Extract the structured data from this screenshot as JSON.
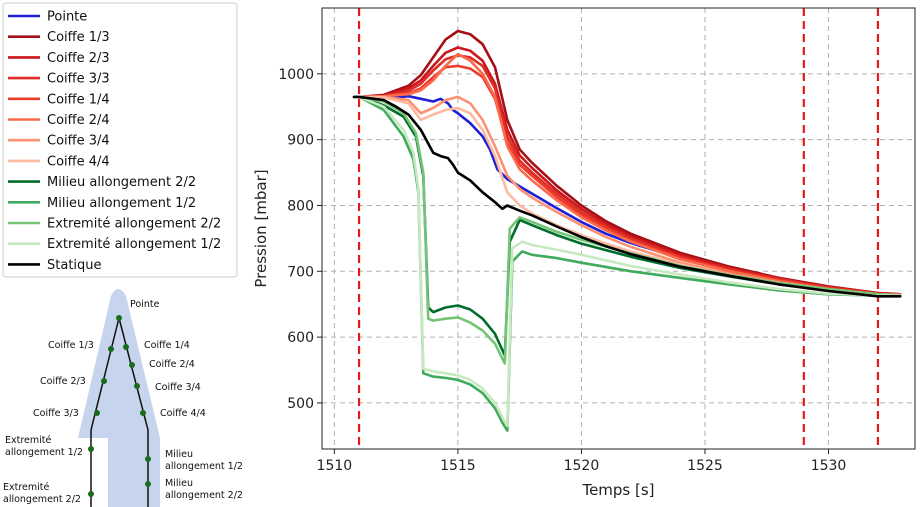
{
  "chart_data": {
    "type": "line",
    "title": "",
    "xlabel": "Temps [s]",
    "ylabel": "Pression [mbar]",
    "xlim": [
      1509.5,
      1533.5
    ],
    "ylim": [
      430,
      1100
    ],
    "xticks": [
      1510,
      1515,
      1520,
      1525,
      1530
    ],
    "yticks": [
      500,
      600,
      700,
      800,
      900,
      1000
    ],
    "grid": true,
    "legend_position": "outside-left",
    "vlines": [
      1511,
      1529,
      1532
    ],
    "vline_color": "#e31a1c",
    "series": [
      {
        "name": "Pointe",
        "color": "#1f1fd6",
        "x": [
          1510.8,
          1511,
          1512,
          1512.5,
          1513,
          1513.5,
          1514,
          1514.3,
          1514.6,
          1514.8,
          1515,
          1515.5,
          1516,
          1516.3,
          1516.6,
          1517,
          1518,
          1519,
          1520,
          1521,
          1522,
          1524,
          1526,
          1528,
          1530,
          1532,
          1532.9
        ],
        "y": [
          965,
          965,
          966,
          964,
          966,
          962,
          958,
          962,
          955,
          945,
          940,
          925,
          905,
          885,
          855,
          840,
          818,
          796,
          775,
          757,
          743,
          720,
          703,
          688,
          675,
          665,
          663
        ]
      },
      {
        "name": "Coiffe 1/3",
        "color": "#a50f15",
        "x": [
          1510.8,
          1511,
          1512,
          1513,
          1513.5,
          1514,
          1514.5,
          1515,
          1515.5,
          1516,
          1516.5,
          1517,
          1517.5,
          1518,
          1519,
          1520,
          1521,
          1522,
          1524,
          1526,
          1528,
          1530,
          1532,
          1532.9
        ],
        "y": [
          965,
          965,
          968,
          982,
          998,
          1025,
          1052,
          1065,
          1060,
          1045,
          1010,
          930,
          885,
          865,
          830,
          800,
          776,
          757,
          728,
          707,
          690,
          677,
          667,
          665
        ]
      },
      {
        "name": "Coiffe 2/3",
        "color": "#cb181d",
        "x": [
          1510.8,
          1511,
          1512,
          1513,
          1513.5,
          1514,
          1514.5,
          1515,
          1515.5,
          1516,
          1516.5,
          1517,
          1517.5,
          1518,
          1519,
          1520,
          1521,
          1522,
          1524,
          1526,
          1528,
          1530,
          1532,
          1532.9
        ],
        "y": [
          965,
          965,
          967,
          978,
          990,
          1012,
          1032,
          1040,
          1035,
          1020,
          985,
          915,
          876,
          857,
          823,
          795,
          772,
          753,
          725,
          705,
          689,
          676,
          667,
          665
        ]
      },
      {
        "name": "Coiffe 3/3",
        "color": "#de2d26",
        "x": [
          1510.8,
          1511,
          1512,
          1513,
          1513.5,
          1514,
          1514.5,
          1515,
          1515.5,
          1516,
          1516.5,
          1517,
          1517.5,
          1518,
          1519,
          1520,
          1521,
          1522,
          1524,
          1526,
          1528,
          1530,
          1532,
          1532.9
        ],
        "y": [
          965,
          965,
          966,
          974,
          985,
          1005,
          1022,
          1028,
          1025,
          1012,
          978,
          905,
          868,
          850,
          818,
          790,
          768,
          750,
          722,
          703,
          688,
          675,
          666,
          664
        ]
      },
      {
        "name": "Coiffe 1/4",
        "color": "#ef3b2c",
        "x": [
          1510.8,
          1511,
          1512,
          1513,
          1513.5,
          1514,
          1514.5,
          1515,
          1515.5,
          1516,
          1516.5,
          1517,
          1517.5,
          1518,
          1519,
          1520,
          1521,
          1522,
          1524,
          1526,
          1528,
          1530,
          1532,
          1532.9
        ],
        "y": [
          965,
          965,
          966,
          970,
          978,
          995,
          1010,
          1012,
          1008,
          995,
          962,
          895,
          862,
          845,
          813,
          786,
          765,
          747,
          720,
          701,
          686,
          674,
          666,
          664
        ]
      },
      {
        "name": "Coiffe 2/4",
        "color": "#fb6a4a",
        "x": [
          1510.8,
          1511,
          1512,
          1513,
          1513.5,
          1514,
          1514.5,
          1515,
          1515.5,
          1516,
          1516.5,
          1517,
          1517.5,
          1518,
          1519,
          1520,
          1521,
          1522,
          1524,
          1526,
          1528,
          1530,
          1532,
          1532.9
        ],
        "y": [
          965,
          965,
          966,
          969,
          975,
          990,
          1012,
          1030,
          1020,
          1000,
          965,
          890,
          855,
          838,
          808,
          782,
          762,
          745,
          718,
          700,
          685,
          673,
          665,
          664
        ]
      },
      {
        "name": "Coiffe 3/4",
        "color": "#fc9272",
        "x": [
          1510.8,
          1511,
          1512,
          1513,
          1513.5,
          1514,
          1514.5,
          1515,
          1515.5,
          1516,
          1516.5,
          1517,
          1517.5,
          1518,
          1519,
          1520,
          1521,
          1522,
          1524,
          1526,
          1528,
          1530,
          1532,
          1532.9
        ],
        "y": [
          965,
          965,
          965,
          960,
          940,
          948,
          960,
          965,
          955,
          930,
          890,
          845,
          825,
          812,
          790,
          770,
          752,
          737,
          713,
          696,
          683,
          672,
          665,
          664
        ]
      },
      {
        "name": "Coiffe 4/4",
        "color": "#fcbba1",
        "x": [
          1510.8,
          1511,
          1512,
          1513,
          1513.5,
          1514,
          1514.5,
          1515,
          1515.5,
          1516,
          1516.5,
          1517,
          1517.5,
          1518,
          1519,
          1520,
          1521,
          1522,
          1524,
          1526,
          1528,
          1530,
          1532,
          1532.9
        ],
        "y": [
          965,
          965,
          964,
          955,
          930,
          938,
          945,
          948,
          940,
          915,
          875,
          820,
          800,
          788,
          770,
          755,
          742,
          730,
          710,
          694,
          682,
          671,
          665,
          664
        ]
      },
      {
        "name": "Milieu allongement 2/2",
        "color": "#006d2c",
        "x": [
          1510.8,
          1511,
          1512,
          1512.8,
          1513.3,
          1513.6,
          1513.8,
          1514,
          1514.5,
          1515,
          1515.5,
          1516,
          1516.5,
          1516.9,
          1517.1,
          1517.5,
          1518,
          1519,
          1520,
          1522,
          1524,
          1526,
          1528,
          1530,
          1532,
          1532.9
        ],
        "y": [
          965,
          965,
          952,
          935,
          905,
          845,
          645,
          638,
          645,
          648,
          642,
          628,
          605,
          572,
          745,
          778,
          770,
          755,
          742,
          722,
          705,
          692,
          680,
          672,
          665,
          663
        ]
      },
      {
        "name": "Milieu allongement 1/2",
        "color": "#41ab5d",
        "x": [
          1510.8,
          1511,
          1512,
          1512.8,
          1513.2,
          1513.4,
          1513.6,
          1514,
          1514.5,
          1515,
          1515.5,
          1516,
          1516.5,
          1516.8,
          1517,
          1517.2,
          1517.6,
          1518,
          1519,
          1520,
          1522,
          1524,
          1526,
          1528,
          1530,
          1532,
          1532.9
        ],
        "y": [
          965,
          965,
          945,
          905,
          870,
          820,
          545,
          540,
          538,
          535,
          528,
          515,
          492,
          470,
          458,
          715,
          730,
          725,
          720,
          713,
          700,
          690,
          680,
          671,
          665,
          663,
          663
        ]
      },
      {
        "name": "Extremité allongement 2/2",
        "color": "#74c476",
        "x": [
          1510.8,
          1511,
          1512,
          1512.8,
          1513.3,
          1513.6,
          1513.8,
          1514,
          1514.5,
          1515,
          1515.5,
          1516,
          1516.5,
          1516.9,
          1517.1,
          1517.5,
          1518,
          1519,
          1520,
          1522,
          1524,
          1526,
          1528,
          1530,
          1532,
          1532.9
        ],
        "y": [
          965,
          965,
          958,
          940,
          910,
          850,
          628,
          625,
          628,
          630,
          622,
          610,
          590,
          560,
          765,
          782,
          775,
          760,
          748,
          727,
          708,
          694,
          682,
          673,
          665,
          663
        ]
      },
      {
        "name": "Extremité allongement 1/2",
        "color": "#c7e9c0",
        "x": [
          1510.8,
          1511,
          1512,
          1512.8,
          1513.2,
          1513.4,
          1513.6,
          1514,
          1514.5,
          1515,
          1515.5,
          1516,
          1516.5,
          1516.8,
          1517,
          1517.2,
          1517.6,
          1518,
          1519,
          1520,
          1522,
          1524,
          1526,
          1528,
          1530,
          1532,
          1532.9
        ],
        "y": [
          965,
          965,
          950,
          915,
          880,
          825,
          552,
          548,
          545,
          542,
          535,
          522,
          500,
          478,
          465,
          735,
          745,
          740,
          733,
          725,
          708,
          695,
          683,
          673,
          666,
          663,
          663
        ]
      },
      {
        "name": "Statique",
        "color": "#000000",
        "x": [
          1510.8,
          1511,
          1512,
          1512.5,
          1513,
          1513.5,
          1514,
          1514.3,
          1514.6,
          1514.8,
          1515,
          1515.5,
          1516,
          1516.5,
          1516.8,
          1517,
          1517.5,
          1518,
          1519,
          1520,
          1521,
          1522,
          1524,
          1526,
          1528,
          1530,
          1532,
          1532.9
        ],
        "y": [
          965,
          965,
          960,
          950,
          938,
          915,
          880,
          875,
          872,
          862,
          850,
          838,
          820,
          805,
          795,
          800,
          792,
          785,
          768,
          752,
          738,
          726,
          707,
          693,
          680,
          670,
          662,
          662
        ]
      }
    ]
  },
  "probe_diagram": {
    "labels": {
      "tip": "Pointe",
      "c13": "Coiffe 1/3",
      "c23": "Coiffe 2/3",
      "c33": "Coiffe 3/3",
      "c14": "Coiffe 1/4",
      "c24": "Coiffe 2/4",
      "c34": "Coiffe 3/4",
      "c44": "Coiffe 4/4",
      "ext12_l1": "Extremité",
      "ext12_l2": "allongement 1/2",
      "ext22_l1": "Extremité",
      "ext22_l2": "allongement 2/2",
      "mil12_l1": "Milieu",
      "mil12_l2": "allongement 1/2",
      "mil22_l1": "Milieu",
      "mil22_l2": "allongement 2/2"
    },
    "body_color": "#c6d4ee",
    "marker_color": "#1a6b1a"
  }
}
